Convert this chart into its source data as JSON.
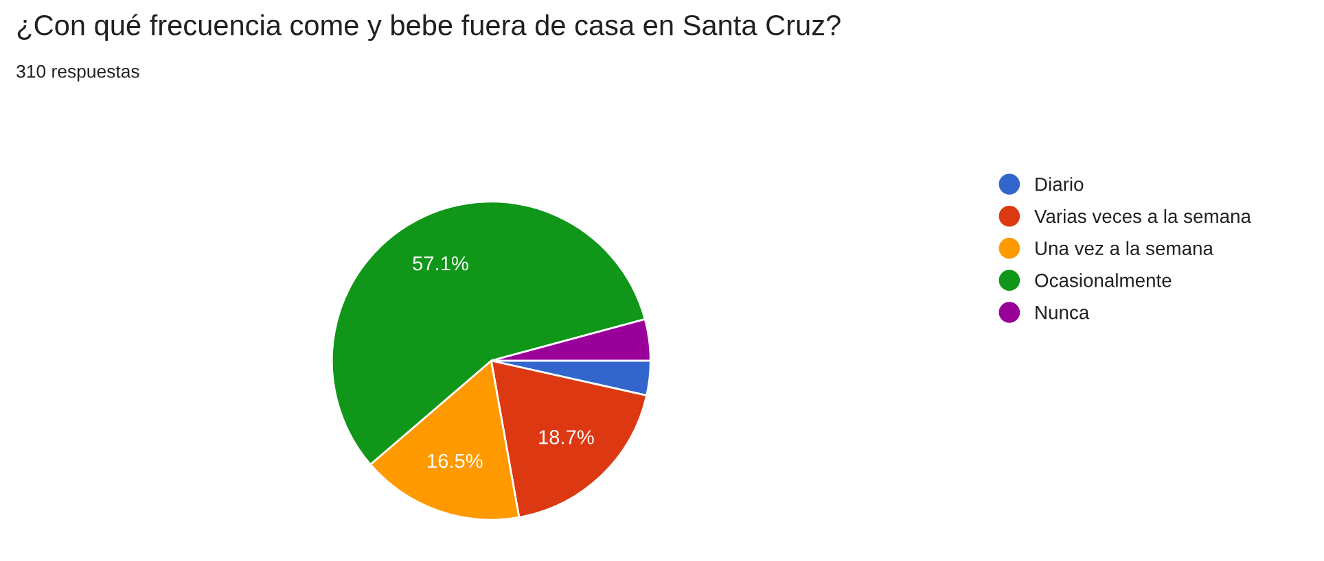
{
  "chart_data": {
    "type": "pie",
    "title": "¿Con qué frecuencia come y bebe fuera de casa en Santa Cruz?",
    "subtitle": "310 respuestas",
    "categories": [
      "Diario",
      "Varias veces a la semana",
      "Una vez a la semana",
      "Ocasionalmente",
      "Nunca"
    ],
    "values": [
      3.5,
      18.7,
      16.5,
      57.1,
      4.2
    ],
    "value_labels": [
      null,
      "18.7%",
      "16.5%",
      "57.1%",
      null
    ],
    "colors": [
      "#3366cc",
      "#dc3912",
      "#ff9900",
      "#109618",
      "#990099"
    ],
    "legend": "right"
  }
}
